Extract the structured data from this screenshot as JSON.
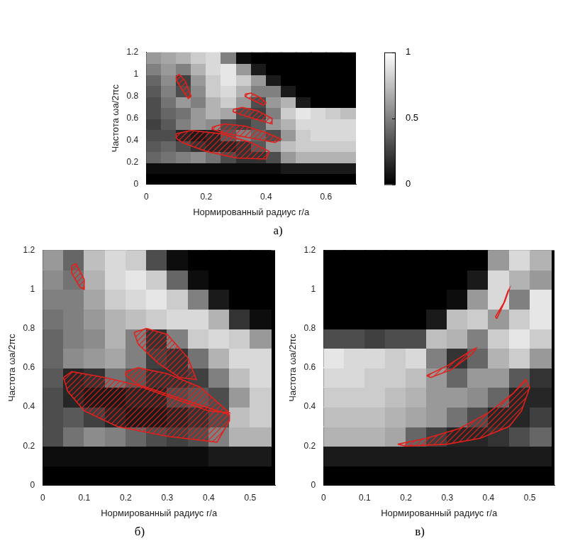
{
  "chart_data": [
    {
      "type": "heatmap",
      "title": "а)",
      "x_label": "Нормированный радиус r/a",
      "y_label": "Частота ωa/2πc",
      "xlim": [
        0,
        0.7
      ],
      "xticks": [
        0,
        0.2,
        0.4,
        0.6
      ],
      "ylim": [
        0,
        1.2
      ],
      "yticks": [
        0,
        0.2,
        0.4,
        0.6,
        0.8,
        1,
        1.2
      ],
      "grid": false,
      "x_edges": [
        0,
        0.05,
        0.1,
        0.15,
        0.2,
        0.25,
        0.3,
        0.35,
        0.4,
        0.45,
        0.5,
        0.55,
        0.6,
        0.65,
        0.7
      ],
      "y_edges": [
        0,
        0.1,
        0.2,
        0.3,
        0.4,
        0.5,
        0.6,
        0.7,
        0.8,
        0.9,
        1,
        1.1,
        1.2
      ],
      "cells": [
        [
          0,
          0,
          0,
          0,
          0,
          0,
          0,
          0,
          0,
          0,
          0,
          0,
          0,
          0
        ],
        [
          0.05,
          0.05,
          0.05,
          0.05,
          0.05,
          0.05,
          0.05,
          0.05,
          0.05,
          0.1,
          0.1,
          0.1,
          0.1,
          0.1
        ],
        [
          0.4,
          0.45,
          0.5,
          0.55,
          0.45,
          0.3,
          0.2,
          0.2,
          0.3,
          0.6,
          0.7,
          0.7,
          0.7,
          0.7
        ],
        [
          0.35,
          0.4,
          0.3,
          0.2,
          0.15,
          0.15,
          0.2,
          0.35,
          0.6,
          0.75,
          0.8,
          0.8,
          0.8,
          0.8
        ],
        [
          0.3,
          0.3,
          0.15,
          0.1,
          0.15,
          0.35,
          0.5,
          0.4,
          0.3,
          0.6,
          0.8,
          0.85,
          0.85,
          0.85
        ],
        [
          0.25,
          0.35,
          0.5,
          0.6,
          0.55,
          0.3,
          0.25,
          0.35,
          0.6,
          0.7,
          0.85,
          0.85,
          0.85,
          0.85
        ],
        [
          0.3,
          0.4,
          0.45,
          0.6,
          0.7,
          0.65,
          0.3,
          0.25,
          0.5,
          0.8,
          0.9,
          0.85,
          0.8,
          0.75
        ],
        [
          0.3,
          0.45,
          0.6,
          0.5,
          0.7,
          0.8,
          0.6,
          0.3,
          0.6,
          0.7,
          0.1,
          0,
          0,
          0
        ],
        [
          0.35,
          0.5,
          0.3,
          0.55,
          0.8,
          0.85,
          0.7,
          0.5,
          0.5,
          0.1,
          0,
          0,
          0,
          0
        ],
        [
          0.4,
          0.55,
          0.25,
          0.6,
          0.8,
          0.9,
          0.8,
          0.6,
          0.1,
          0,
          0,
          0,
          0,
          0
        ],
        [
          0.5,
          0.6,
          0.5,
          0.7,
          0.85,
          0.9,
          0.6,
          0.1,
          0,
          0,
          0,
          0,
          0,
          0
        ],
        [
          0.6,
          0.65,
          0.7,
          0.8,
          0.85,
          0.5,
          0.05,
          0,
          0,
          0,
          0,
          0,
          0,
          0
        ]
      ],
      "colorbar": {
        "range": [
          0,
          1
        ],
        "ticks": [
          0,
          0.5,
          1
        ]
      },
      "band_gaps": [
        [
          [
            0.1,
            0.46
          ],
          [
            0.15,
            0.49
          ],
          [
            0.25,
            0.46
          ],
          [
            0.35,
            0.38
          ],
          [
            0.41,
            0.3
          ],
          [
            0.4,
            0.23
          ],
          [
            0.3,
            0.24
          ],
          [
            0.2,
            0.3
          ],
          [
            0.12,
            0.38
          ],
          [
            0.1,
            0.42
          ]
        ],
        [
          [
            0.22,
            0.52
          ],
          [
            0.26,
            0.55
          ],
          [
            0.33,
            0.53
          ],
          [
            0.4,
            0.47
          ],
          [
            0.45,
            0.41
          ],
          [
            0.43,
            0.38
          ],
          [
            0.35,
            0.42
          ],
          [
            0.27,
            0.46
          ],
          [
            0.22,
            0.5
          ]
        ],
        [
          [
            0.29,
            0.68
          ],
          [
            0.32,
            0.7
          ],
          [
            0.37,
            0.67
          ],
          [
            0.42,
            0.6
          ],
          [
            0.42,
            0.55
          ],
          [
            0.38,
            0.58
          ],
          [
            0.32,
            0.63
          ],
          [
            0.29,
            0.66
          ]
        ],
        [
          [
            0.33,
            0.82
          ],
          [
            0.35,
            0.83
          ],
          [
            0.38,
            0.79
          ],
          [
            0.4,
            0.74
          ],
          [
            0.39,
            0.72
          ],
          [
            0.36,
            0.76
          ],
          [
            0.33,
            0.8
          ]
        ],
        [
          [
            0.1,
            0.98
          ],
          [
            0.11,
            1.0
          ],
          [
            0.13,
            0.94
          ],
          [
            0.15,
            0.8
          ],
          [
            0.14,
            0.78
          ],
          [
            0.12,
            0.86
          ],
          [
            0.1,
            0.95
          ]
        ]
      ]
    },
    {
      "type": "heatmap",
      "title": "б)",
      "x_label": "Нормированный радиус r/a",
      "y_label": "Частота ωa/2πc",
      "xlim": [
        0,
        0.56
      ],
      "xticks": [
        0,
        0.1,
        0.2,
        0.3,
        0.4,
        0.5
      ],
      "ylim": [
        0,
        1.2
      ],
      "yticks": [
        0,
        0.2,
        0.4,
        0.6,
        0.8,
        1,
        1.2
      ],
      "grid": false,
      "x_edges": [
        0,
        0.05,
        0.1,
        0.15,
        0.2,
        0.25,
        0.3,
        0.35,
        0.4,
        0.45,
        0.5,
        0.55
      ],
      "y_edges": [
        0,
        0.1,
        0.2,
        0.3,
        0.4,
        0.5,
        0.6,
        0.7,
        0.8,
        0.9,
        1,
        1.1,
        1.2
      ],
      "cells": [
        [
          0,
          0,
          0,
          0,
          0,
          0,
          0,
          0,
          0,
          0,
          0
        ],
        [
          0.05,
          0.05,
          0.05,
          0.05,
          0.05,
          0.05,
          0.05,
          0.05,
          0.1,
          0.1,
          0.1
        ],
        [
          0.3,
          0.45,
          0.55,
          0.5,
          0.4,
          0.3,
          0.25,
          0.3,
          0.5,
          0.7,
          0.7
        ],
        [
          0.3,
          0.35,
          0.25,
          0.15,
          0.1,
          0.1,
          0.15,
          0.2,
          0.3,
          0.75,
          0.8
        ],
        [
          0.3,
          0.15,
          0.1,
          0.1,
          0.15,
          0.15,
          0.3,
          0.35,
          0.3,
          0.6,
          0.8
        ],
        [
          0.35,
          0.15,
          0.2,
          0.45,
          0.35,
          0.2,
          0.2,
          0.25,
          0.5,
          0.75,
          0.85
        ],
        [
          0.4,
          0.55,
          0.6,
          0.65,
          0.5,
          0.25,
          0.2,
          0.45,
          0.7,
          0.85,
          0.85
        ],
        [
          0.4,
          0.5,
          0.55,
          0.7,
          0.5,
          0.2,
          0.5,
          0.8,
          0.85,
          0.8,
          0.6
        ],
        [
          0.45,
          0.5,
          0.6,
          0.7,
          0.75,
          0.8,
          0.85,
          0.85,
          0.7,
          0.2,
          0.05
        ],
        [
          0.5,
          0.5,
          0.65,
          0.8,
          0.85,
          0.9,
          0.8,
          0.5,
          0.1,
          0,
          0
        ],
        [
          0.55,
          0.45,
          0.7,
          0.85,
          0.9,
          0.8,
          0.4,
          0.05,
          0,
          0,
          0
        ],
        [
          0.6,
          0.4,
          0.75,
          0.85,
          0.8,
          0.3,
          0.05,
          0,
          0,
          0,
          0
        ]
      ],
      "band_gaps": [
        [
          [
            0.05,
            0.55
          ],
          [
            0.07,
            0.58
          ],
          [
            0.15,
            0.55
          ],
          [
            0.25,
            0.5
          ],
          [
            0.35,
            0.43
          ],
          [
            0.45,
            0.36
          ],
          [
            0.45,
            0.33
          ],
          [
            0.42,
            0.22
          ],
          [
            0.3,
            0.25
          ],
          [
            0.18,
            0.3
          ],
          [
            0.1,
            0.38
          ],
          [
            0.06,
            0.48
          ]
        ],
        [
          [
            0.2,
            0.58
          ],
          [
            0.23,
            0.6
          ],
          [
            0.3,
            0.57
          ],
          [
            0.38,
            0.5
          ],
          [
            0.45,
            0.37
          ],
          [
            0.4,
            0.38
          ],
          [
            0.32,
            0.44
          ],
          [
            0.24,
            0.5
          ],
          [
            0.2,
            0.56
          ]
        ],
        [
          [
            0.22,
            0.78
          ],
          [
            0.25,
            0.8
          ],
          [
            0.3,
            0.77
          ],
          [
            0.35,
            0.65
          ],
          [
            0.37,
            0.54
          ],
          [
            0.33,
            0.55
          ],
          [
            0.28,
            0.62
          ],
          [
            0.23,
            0.72
          ]
        ],
        [
          [
            0.07,
            1.12
          ],
          [
            0.08,
            1.13
          ],
          [
            0.1,
            1.05
          ],
          [
            0.1,
            1.0
          ],
          [
            0.09,
            1.01
          ],
          [
            0.07,
            1.08
          ]
        ]
      ]
    },
    {
      "type": "heatmap",
      "title": "в)",
      "x_label": "Нормированный радиус r/a",
      "y_label": "Частота ωa/2πc",
      "xlim": [
        0,
        0.56
      ],
      "xticks": [
        0,
        0.1,
        0.2,
        0.3,
        0.4,
        0.5
      ],
      "ylim": [
        0,
        1.2
      ],
      "yticks": [
        0,
        0.2,
        0.4,
        0.6,
        0.8,
        1,
        1.2
      ],
      "grid": false,
      "x_edges": [
        0,
        0.05,
        0.1,
        0.15,
        0.2,
        0.25,
        0.3,
        0.35,
        0.4,
        0.45,
        0.5,
        0.55
      ],
      "y_edges": [
        0,
        0.1,
        0.2,
        0.3,
        0.4,
        0.5,
        0.6,
        0.7,
        0.8,
        0.9,
        1,
        1.1,
        1.2
      ],
      "cells": [
        [
          0,
          0,
          0,
          0,
          0,
          0,
          0,
          0,
          0,
          0,
          0
        ],
        [
          0.1,
          0.1,
          0.1,
          0.1,
          0.1,
          0.1,
          0.1,
          0.1,
          0.1,
          0.1,
          0.1
        ],
        [
          0.7,
          0.7,
          0.7,
          0.65,
          0.4,
          0.25,
          0.15,
          0.15,
          0.2,
          0.3,
          0.4
        ],
        [
          0.75,
          0.75,
          0.75,
          0.7,
          0.65,
          0.6,
          0.45,
          0.3,
          0.15,
          0.15,
          0.25
        ],
        [
          0.8,
          0.8,
          0.8,
          0.75,
          0.7,
          0.6,
          0.6,
          0.55,
          0.4,
          0.15,
          0.15
        ],
        [
          0.85,
          0.85,
          0.8,
          0.8,
          0.75,
          0.6,
          0.4,
          0.6,
          0.6,
          0.35,
          0.2
        ],
        [
          0.9,
          0.85,
          0.85,
          0.8,
          0.85,
          0.5,
          0.2,
          0.4,
          0.7,
          0.8,
          0.6
        ],
        [
          0.3,
          0.3,
          0.25,
          0.3,
          0.3,
          0.75,
          0.7,
          0.5,
          0.8,
          0.9,
          0.8
        ],
        [
          0,
          0,
          0,
          0,
          0,
          0.1,
          0.75,
          0.8,
          0.6,
          0.8,
          0.9
        ],
        [
          0,
          0,
          0,
          0,
          0,
          0,
          0.05,
          0.6,
          0.85,
          0.5,
          0.9
        ],
        [
          0,
          0,
          0,
          0,
          0,
          0,
          0,
          0.1,
          0.85,
          0.7,
          0.6
        ],
        [
          0,
          0,
          0,
          0,
          0,
          0,
          0,
          0,
          0.6,
          0.85,
          0.7
        ]
      ],
      "band_gaps": [
        [
          [
            0.18,
            0.21
          ],
          [
            0.25,
            0.24
          ],
          [
            0.33,
            0.29
          ],
          [
            0.4,
            0.37
          ],
          [
            0.46,
            0.47
          ],
          [
            0.49,
            0.54
          ],
          [
            0.5,
            0.5
          ],
          [
            0.48,
            0.38
          ],
          [
            0.45,
            0.3
          ],
          [
            0.38,
            0.24
          ],
          [
            0.3,
            0.21
          ],
          [
            0.2,
            0.2
          ]
        ],
        [
          [
            0.25,
            0.56
          ],
          [
            0.3,
            0.61
          ],
          [
            0.36,
            0.69
          ],
          [
            0.37,
            0.7
          ],
          [
            0.36,
            0.67
          ],
          [
            0.31,
            0.59
          ],
          [
            0.26,
            0.55
          ]
        ],
        [
          [
            0.42,
            0.85
          ],
          [
            0.44,
            0.94
          ],
          [
            0.45,
            1.0
          ],
          [
            0.447,
            0.99
          ],
          [
            0.437,
            0.93
          ],
          [
            0.417,
            0.86
          ]
        ]
      ]
    }
  ]
}
